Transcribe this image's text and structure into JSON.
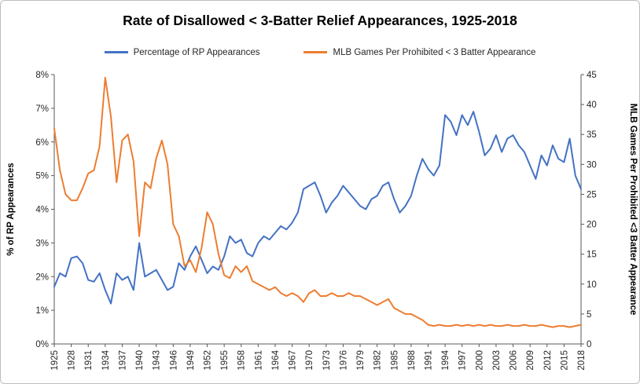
{
  "title": "Rate of Disallowed < 3-Batter Relief Appearances, 1925-2018",
  "legend": [
    {
      "label": "Percentage of RP Appearances",
      "color": "#4472C4"
    },
    {
      "label": "MLB Games Per Prohibited < 3 Batter Appearance",
      "color": "#ED7D31"
    }
  ],
  "chart_data": {
    "type": "line",
    "title": "Rate of Disallowed < 3-Batter Relief Appearances, 1925-2018",
    "grid": false,
    "legend_position": "top",
    "x": [
      1925,
      1926,
      1927,
      1928,
      1929,
      1930,
      1931,
      1932,
      1933,
      1934,
      1935,
      1936,
      1937,
      1938,
      1939,
      1940,
      1941,
      1942,
      1943,
      1944,
      1945,
      1946,
      1947,
      1948,
      1949,
      1950,
      1951,
      1952,
      1953,
      1954,
      1955,
      1956,
      1957,
      1958,
      1959,
      1960,
      1961,
      1962,
      1963,
      1964,
      1965,
      1966,
      1967,
      1968,
      1969,
      1970,
      1971,
      1972,
      1973,
      1974,
      1975,
      1976,
      1977,
      1978,
      1979,
      1980,
      1981,
      1982,
      1983,
      1984,
      1985,
      1986,
      1987,
      1988,
      1989,
      1990,
      1991,
      1992,
      1993,
      1994,
      1995,
      1996,
      1997,
      1998,
      1999,
      2000,
      2001,
      2002,
      2003,
      2004,
      2005,
      2006,
      2007,
      2008,
      2009,
      2010,
      2011,
      2012,
      2013,
      2014,
      2015,
      2016,
      2017,
      2018
    ],
    "x_tick_step": 3,
    "left_axis": {
      "label": "% of RP Appearances",
      "min": 0,
      "max": 8,
      "step": 1,
      "format": "percent"
    },
    "right_axis": {
      "label": "MLB Games Per Prohibited <3 Batter Appearance",
      "min": 0,
      "max": 45,
      "step": 5
    },
    "series": [
      {
        "name": "Percentage of RP Appearances",
        "axis": "left",
        "color": "#4472C4",
        "values": [
          1.7,
          2.1,
          2.0,
          2.55,
          2.6,
          2.4,
          1.9,
          1.85,
          2.1,
          1.6,
          1.2,
          2.1,
          1.9,
          2.0,
          1.6,
          3.0,
          2.0,
          2.1,
          2.2,
          1.9,
          1.6,
          1.7,
          2.4,
          2.2,
          2.6,
          2.9,
          2.5,
          2.1,
          2.3,
          2.2,
          2.6,
          3.2,
          3.0,
          3.1,
          2.7,
          2.6,
          3.0,
          3.2,
          3.1,
          3.3,
          3.5,
          3.4,
          3.6,
          3.9,
          4.6,
          4.7,
          4.8,
          4.4,
          3.9,
          4.2,
          4.4,
          4.7,
          4.5,
          4.3,
          4.1,
          4.0,
          4.3,
          4.4,
          4.7,
          4.8,
          4.3,
          3.9,
          4.1,
          4.4,
          5.0,
          5.5,
          5.2,
          5.0,
          5.3,
          6.8,
          6.6,
          6.2,
          6.8,
          6.5,
          6.9,
          6.3,
          5.6,
          5.8,
          6.2,
          5.7,
          6.1,
          6.2,
          5.9,
          5.7,
          5.3,
          4.9,
          5.6,
          5.3,
          5.9,
          5.5,
          5.4,
          6.1,
          5.0,
          4.6
        ]
      },
      {
        "name": "MLB Games Per Prohibited < 3 Batter Appearance",
        "axis": "right",
        "color": "#ED7D31",
        "values": [
          36,
          29,
          25,
          24,
          24,
          26,
          28.5,
          29,
          33,
          44.5,
          38,
          27,
          34,
          35,
          30.5,
          18,
          27,
          26,
          31,
          34,
          30,
          20,
          18,
          13,
          14,
          12,
          16,
          22,
          20,
          15,
          11.5,
          11,
          13,
          12,
          13,
          10.5,
          10,
          9.5,
          9,
          9.5,
          8.5,
          8,
          8.5,
          8,
          7,
          8.5,
          9,
          8,
          8,
          8.5,
          8,
          8,
          8.5,
          8,
          8,
          7.5,
          7,
          6.5,
          7,
          7.5,
          6,
          5.5,
          5,
          5,
          4.5,
          4,
          3.2,
          3,
          3.2,
          3,
          3,
          3.2,
          3,
          3.2,
          3,
          3.2,
          3,
          3.2,
          3,
          3,
          3.2,
          3,
          3,
          3.2,
          3,
          3,
          3.2,
          3,
          2.8,
          3,
          3,
          2.8,
          3,
          3.2
        ]
      }
    ]
  }
}
